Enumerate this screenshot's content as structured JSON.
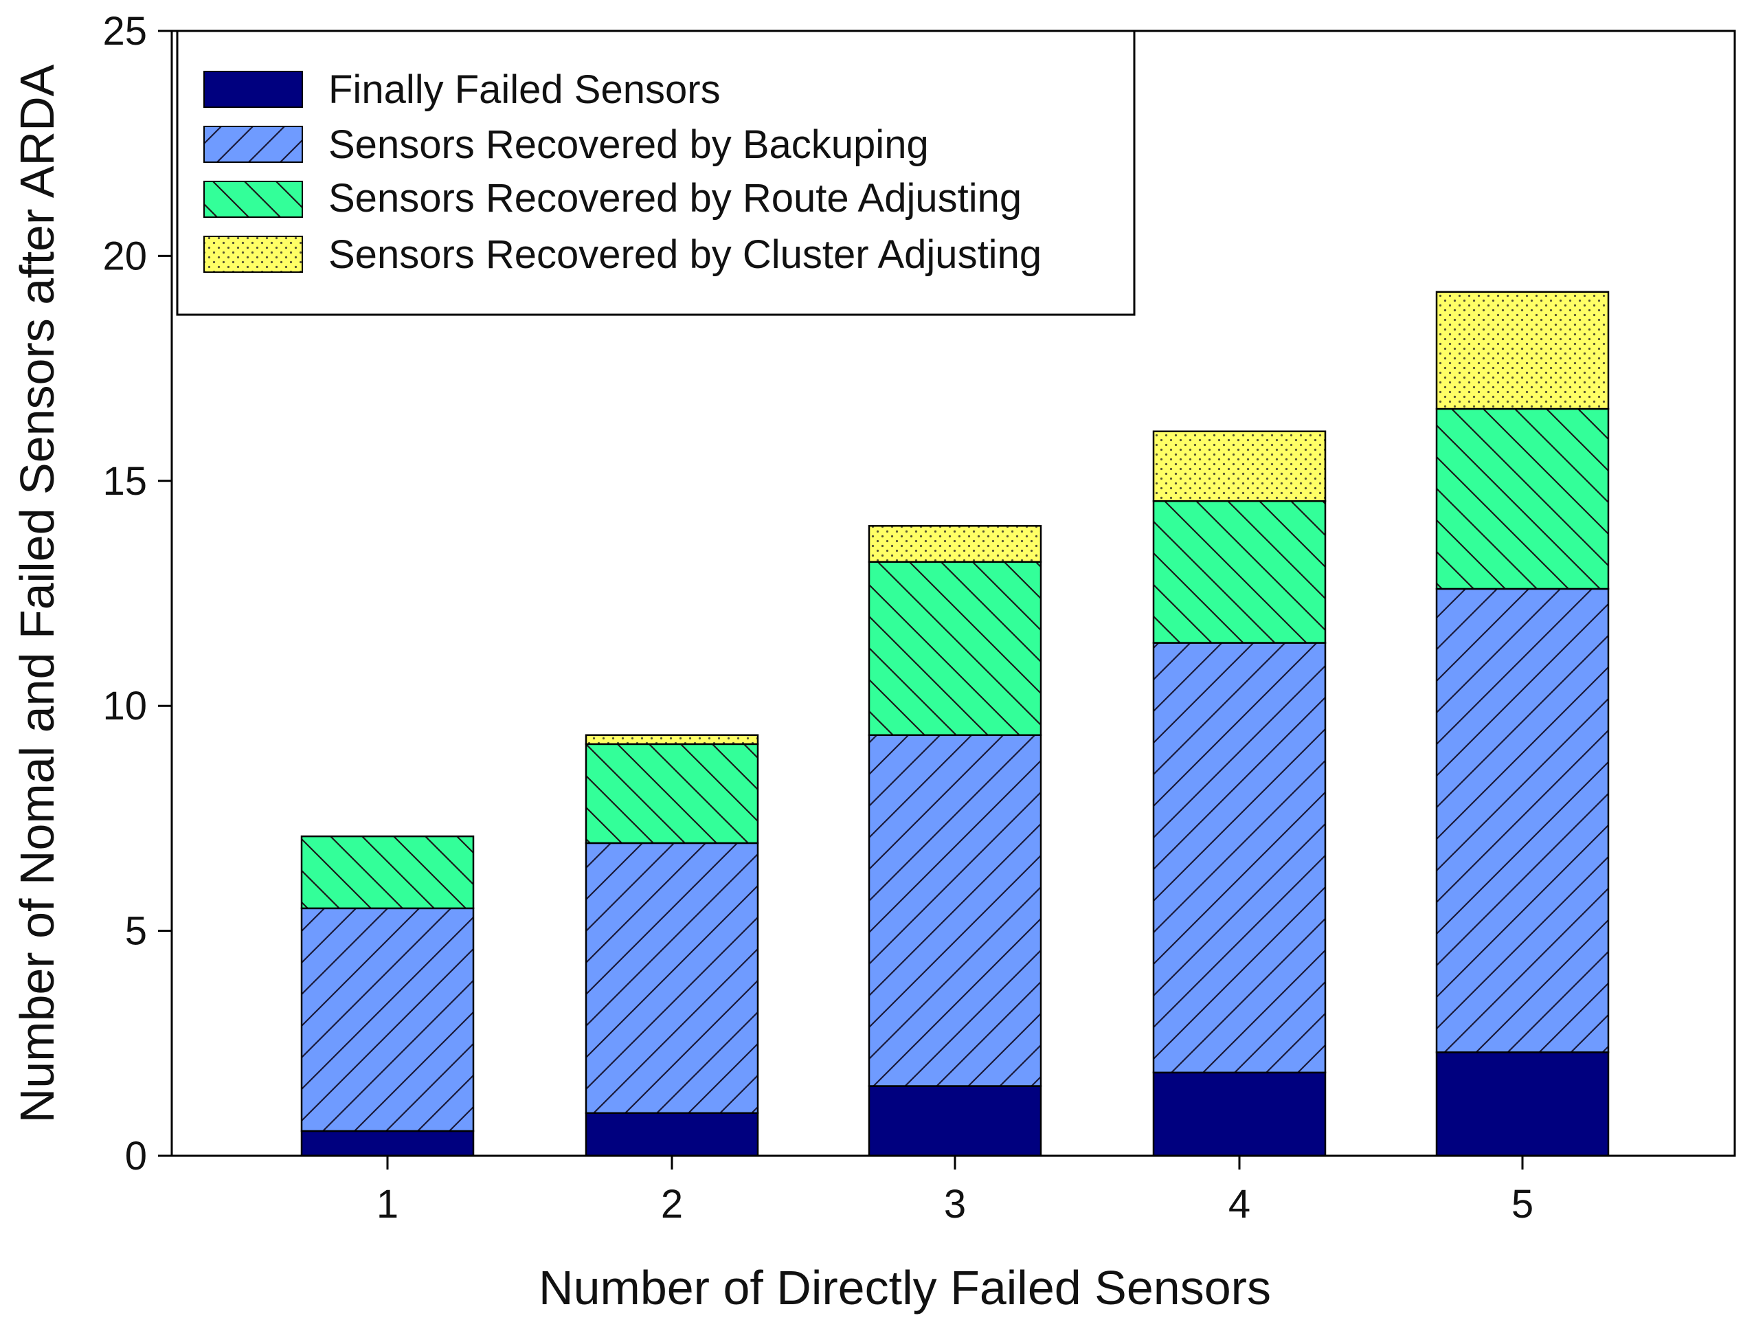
{
  "chart_data": {
    "type": "bar",
    "stacked": true,
    "title": "",
    "xlabel": "Number of Directly Failed Sensors",
    "ylabel": "Number of Nomal and Failed Sensors after ARDA",
    "categories": [
      "1",
      "2",
      "3",
      "4",
      "5"
    ],
    "ylim": [
      0,
      25
    ],
    "yticks": [
      "0",
      "5",
      "10",
      "15",
      "20",
      "25"
    ],
    "legend_position": "top-left",
    "grid": false,
    "series": [
      {
        "name": "Finally Failed Sensors",
        "values": [
          0.55,
          0.95,
          1.55,
          1.85,
          2.3
        ],
        "color": "#00007f",
        "pattern": "solid"
      },
      {
        "name": "Sensors Recovered by Backuping",
        "values": [
          4.95,
          6.0,
          7.8,
          9.55,
          10.3
        ],
        "color": "#6f9bff",
        "pattern": "hatch-forward"
      },
      {
        "name": "Sensors Recovered by Route Adjusting",
        "values": [
          1.6,
          2.2,
          3.85,
          3.15,
          4.0
        ],
        "color": "#33ff99",
        "pattern": "hatch-backward"
      },
      {
        "name": "Sensors Recovered by Cluster Adjusting",
        "values": [
          0.0,
          0.2,
          0.8,
          1.55,
          2.6
        ],
        "color": "#ffff66",
        "pattern": "dots"
      }
    ]
  }
}
